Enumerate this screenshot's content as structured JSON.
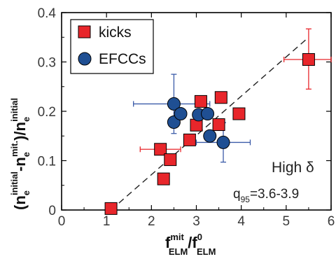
{
  "chart_data": {
    "type": "scatter",
    "xlim": [
      0,
      6
    ],
    "ylim": [
      0,
      0.4
    ],
    "x_ticks": [
      "0",
      "1",
      "2",
      "3",
      "4",
      "5",
      "6"
    ],
    "y_ticks": [
      "0",
      "0.1",
      "0.2",
      "0.3",
      "0.4"
    ],
    "x_tick_values": [
      0,
      1,
      2,
      3,
      4,
      5,
      6
    ],
    "y_tick_values": [
      0,
      0.1,
      0.2,
      0.3,
      0.4
    ],
    "xlabel": {
      "base1": "f",
      "sup1": "mit",
      "sub1": "ELM",
      "slash": "/",
      "base2": "f",
      "sup2": "0",
      "sub2": "ELM"
    },
    "ylabel": {
      "open": "(n",
      "sup1": "initial",
      "sub1": "e",
      "minus": "-n",
      "sup2": "mit.",
      "sub2": "e",
      "close": ")/n",
      "sup3": "initial",
      "sub3": "e"
    },
    "legend": {
      "placement": "top-left"
    },
    "series": [
      {
        "name": "kicks",
        "marker": "square",
        "color": "#e8262b",
        "points": [
          {
            "x": 1.1,
            "y": 0.003
          },
          {
            "x": 2.2,
            "y": 0.123,
            "xerr": [
              0.45,
              0.45
            ]
          },
          {
            "x": 2.27,
            "y": 0.063
          },
          {
            "x": 2.42,
            "y": 0.102
          },
          {
            "x": 2.85,
            "y": 0.142
          },
          {
            "x": 3.0,
            "y": 0.172
          },
          {
            "x": 3.1,
            "y": 0.22
          },
          {
            "x": 3.5,
            "y": 0.173
          },
          {
            "x": 3.55,
            "y": 0.228
          },
          {
            "x": 3.95,
            "y": 0.195
          },
          {
            "x": 5.5,
            "y": 0.305,
            "xerr": [
              0.55,
              0.5
            ],
            "yerr": [
              0.06,
              0.062
            ]
          }
        ]
      },
      {
        "name": "EFCCs",
        "marker": "circle",
        "color": "#1f4f93",
        "points": [
          {
            "x": 2.5,
            "y": 0.215,
            "xerr": [
              0.9,
              0.8
            ],
            "yerr": [
              0.06,
              0.06
            ]
          },
          {
            "x": 2.5,
            "y": 0.178
          },
          {
            "x": 2.65,
            "y": 0.195
          },
          {
            "x": 3.05,
            "y": 0.193
          },
          {
            "x": 3.25,
            "y": 0.195
          },
          {
            "x": 3.3,
            "y": 0.15
          },
          {
            "x": 3.6,
            "y": 0.137,
            "xerr": [
              0.6,
              0.6
            ],
            "yerr": [
              0.04,
              0.04
            ]
          }
        ]
      }
    ],
    "reference_line": {
      "x": [
        1.1,
        5.5
      ],
      "y": [
        0.0,
        0.35
      ],
      "style": "dashed",
      "color": "#222222"
    },
    "annotations": {
      "label1": "High δ",
      "label2_base": "q",
      "label2_sub": "95",
      "label2_rest": "=3.6-3.9"
    },
    "errorbar_colors": {
      "kicks": "#e8262b",
      "EFCCs": "#3b5ba8"
    }
  }
}
